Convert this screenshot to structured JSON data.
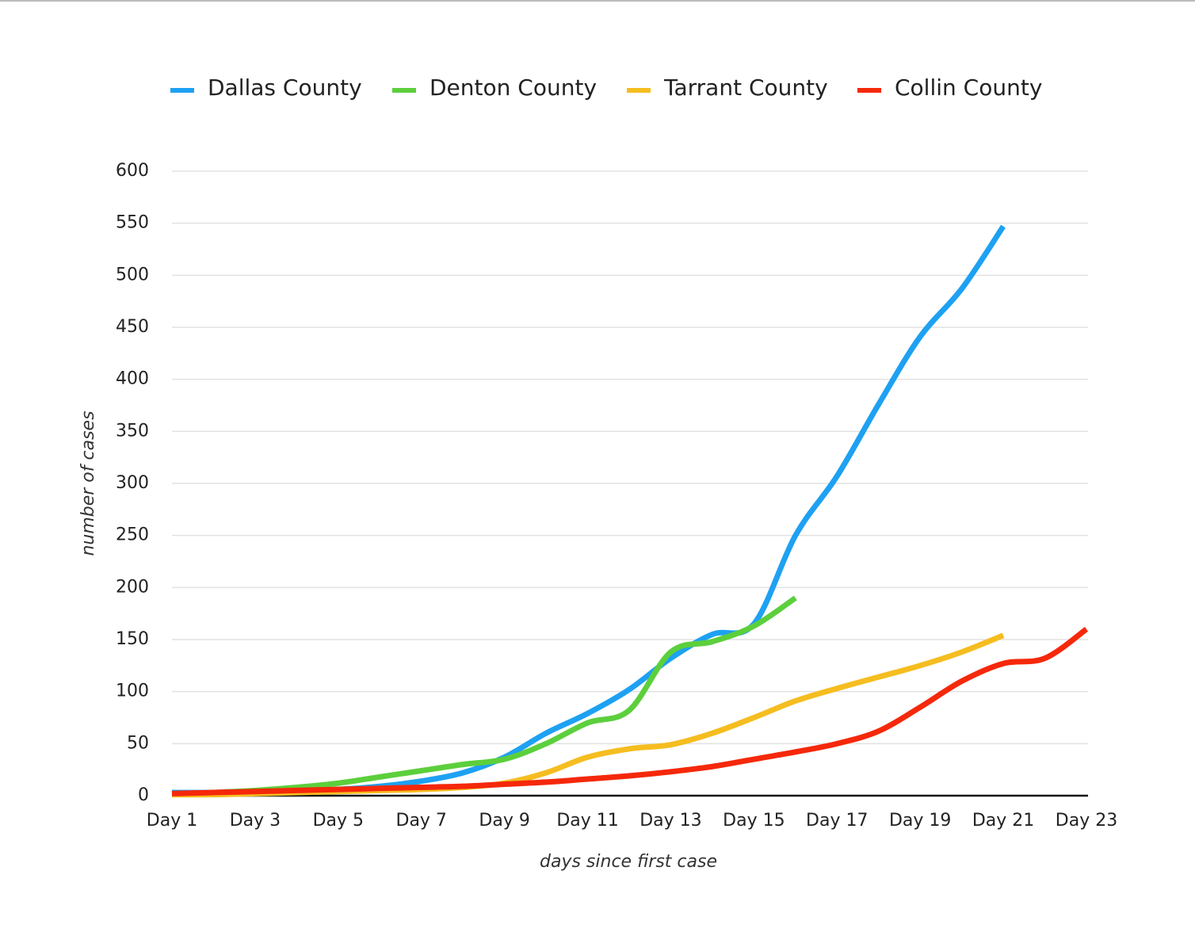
{
  "chart_data": {
    "type": "line",
    "xlabel": "days since first case",
    "ylabel": "number of cases",
    "categories": [
      "Day 1",
      null,
      "Day 3",
      null,
      "Day 5",
      null,
      "Day 7",
      null,
      "Day 9",
      null,
      "Day 11",
      null,
      "Day 13",
      null,
      "Day 15",
      null,
      "Day 17",
      null,
      "Day 19",
      null,
      "Day 21",
      null,
      "Day 23"
    ],
    "series": [
      {
        "name": "Dallas County",
        "color": "#1ea1f2",
        "values": [
          3,
          3,
          4,
          5,
          6,
          9,
          14,
          22,
          37,
          60,
          79,
          102,
          132,
          155,
          165,
          250,
          307,
          376,
          441,
          487,
          547,
          null,
          null
        ]
      },
      {
        "name": "Denton County",
        "color": "#5ccf3c",
        "values": [
          1,
          3,
          5,
          8,
          12,
          18,
          24,
          30,
          35,
          50,
          70,
          82,
          138,
          148,
          163,
          190,
          null,
          null,
          null,
          null,
          null,
          null,
          null
        ]
      },
      {
        "name": "Tarrant County",
        "color": "#f5bd1f",
        "values": [
          1,
          1,
          2,
          3,
          4,
          5,
          6,
          8,
          12,
          22,
          37,
          45,
          49,
          60,
          75,
          91,
          103,
          114,
          125,
          138,
          154,
          null,
          null
        ]
      },
      {
        "name": "Collin County",
        "color": "#f5280a",
        "values": [
          2,
          3,
          4,
          5,
          6,
          7,
          8,
          9,
          11,
          13,
          16,
          19,
          23,
          28,
          35,
          42,
          50,
          62,
          85,
          110,
          127,
          132,
          160
        ]
      }
    ],
    "ylim": [
      0,
      600
    ],
    "yticks": [
      0,
      50,
      100,
      150,
      200,
      250,
      300,
      350,
      400,
      450,
      500,
      550,
      600
    ],
    "grid": true,
    "legend": "top"
  }
}
